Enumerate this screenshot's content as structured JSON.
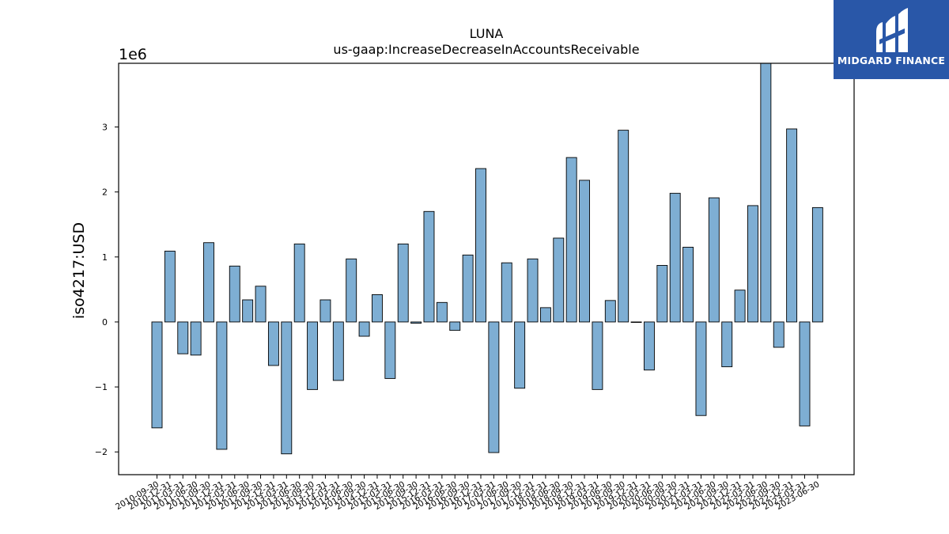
{
  "logo": {
    "text": "MIDGARD FINANCE",
    "bg_color": "#2957a8",
    "icon": "midgard-logo-icon"
  },
  "chart_data": {
    "type": "bar",
    "title": "LUNA",
    "subtitle": "us-gaap:IncreaseDecreaseInAccountsReceivable",
    "xlabel": "",
    "ylabel": "iso4217:USD",
    "y_multiplier_label": "1e6",
    "ylim": [
      -2.35,
      3.98
    ],
    "yticks": [
      -2,
      -1,
      0,
      1,
      2,
      3
    ],
    "ytick_labels": [
      "−2",
      "−1",
      "0",
      "1",
      "2",
      "3"
    ],
    "grid": false,
    "bar_color": "#7eaed3",
    "bar_edge_color": "#000000",
    "categories": [
      "2010-09-30",
      "2010-12-31",
      "2011-03-31",
      "2011-06-30",
      "2011-09-30",
      "2011-12-31",
      "2012-03-31",
      "2012-06-30",
      "2012-09-30",
      "2012-12-31",
      "2013-03-31",
      "2013-06-30",
      "2013-09-30",
      "2013-12-31",
      "2014-03-31",
      "2014-06-30",
      "2014-09-30",
      "2014-12-31",
      "2015-03-31",
      "2015-06-30",
      "2015-09-30",
      "2015-12-31",
      "2016-03-31",
      "2016-06-30",
      "2016-09-30",
      "2016-12-31",
      "2017-03-31",
      "2017-06-30",
      "2017-09-30",
      "2017-12-31",
      "2018-03-31",
      "2018-06-30",
      "2018-09-30",
      "2018-12-31",
      "2019-03-31",
      "2019-06-30",
      "2019-09-30",
      "2019-12-31",
      "2020-03-31",
      "2020-06-30",
      "2020-09-30",
      "2020-12-31",
      "2021-03-31",
      "2021-06-30",
      "2021-09-30",
      "2021-12-31",
      "2022-03-31",
      "2022-06-30",
      "2022-09-30",
      "2022-12-31",
      "2023-03-31",
      "2023-06-30"
    ],
    "values": [
      -1.63,
      1.09,
      -0.49,
      -0.51,
      1.22,
      -1.96,
      0.86,
      0.34,
      0.55,
      -0.67,
      -2.03,
      1.2,
      -1.04,
      0.34,
      -0.9,
      0.97,
      -0.22,
      0.42,
      -0.87,
      1.2,
      -0.02,
      1.7,
      0.3,
      -0.13,
      1.03,
      2.36,
      -2.01,
      0.91,
      -1.02,
      0.97,
      0.22,
      1.29,
      2.53,
      2.18,
      -1.04,
      0.33,
      2.95,
      0.0,
      -0.74,
      0.87,
      1.98,
      1.15,
      -1.44,
      1.91,
      -0.69,
      0.49,
      1.79,
      3.98,
      -0.39,
      2.97,
      -1.6,
      1.76
    ]
  }
}
